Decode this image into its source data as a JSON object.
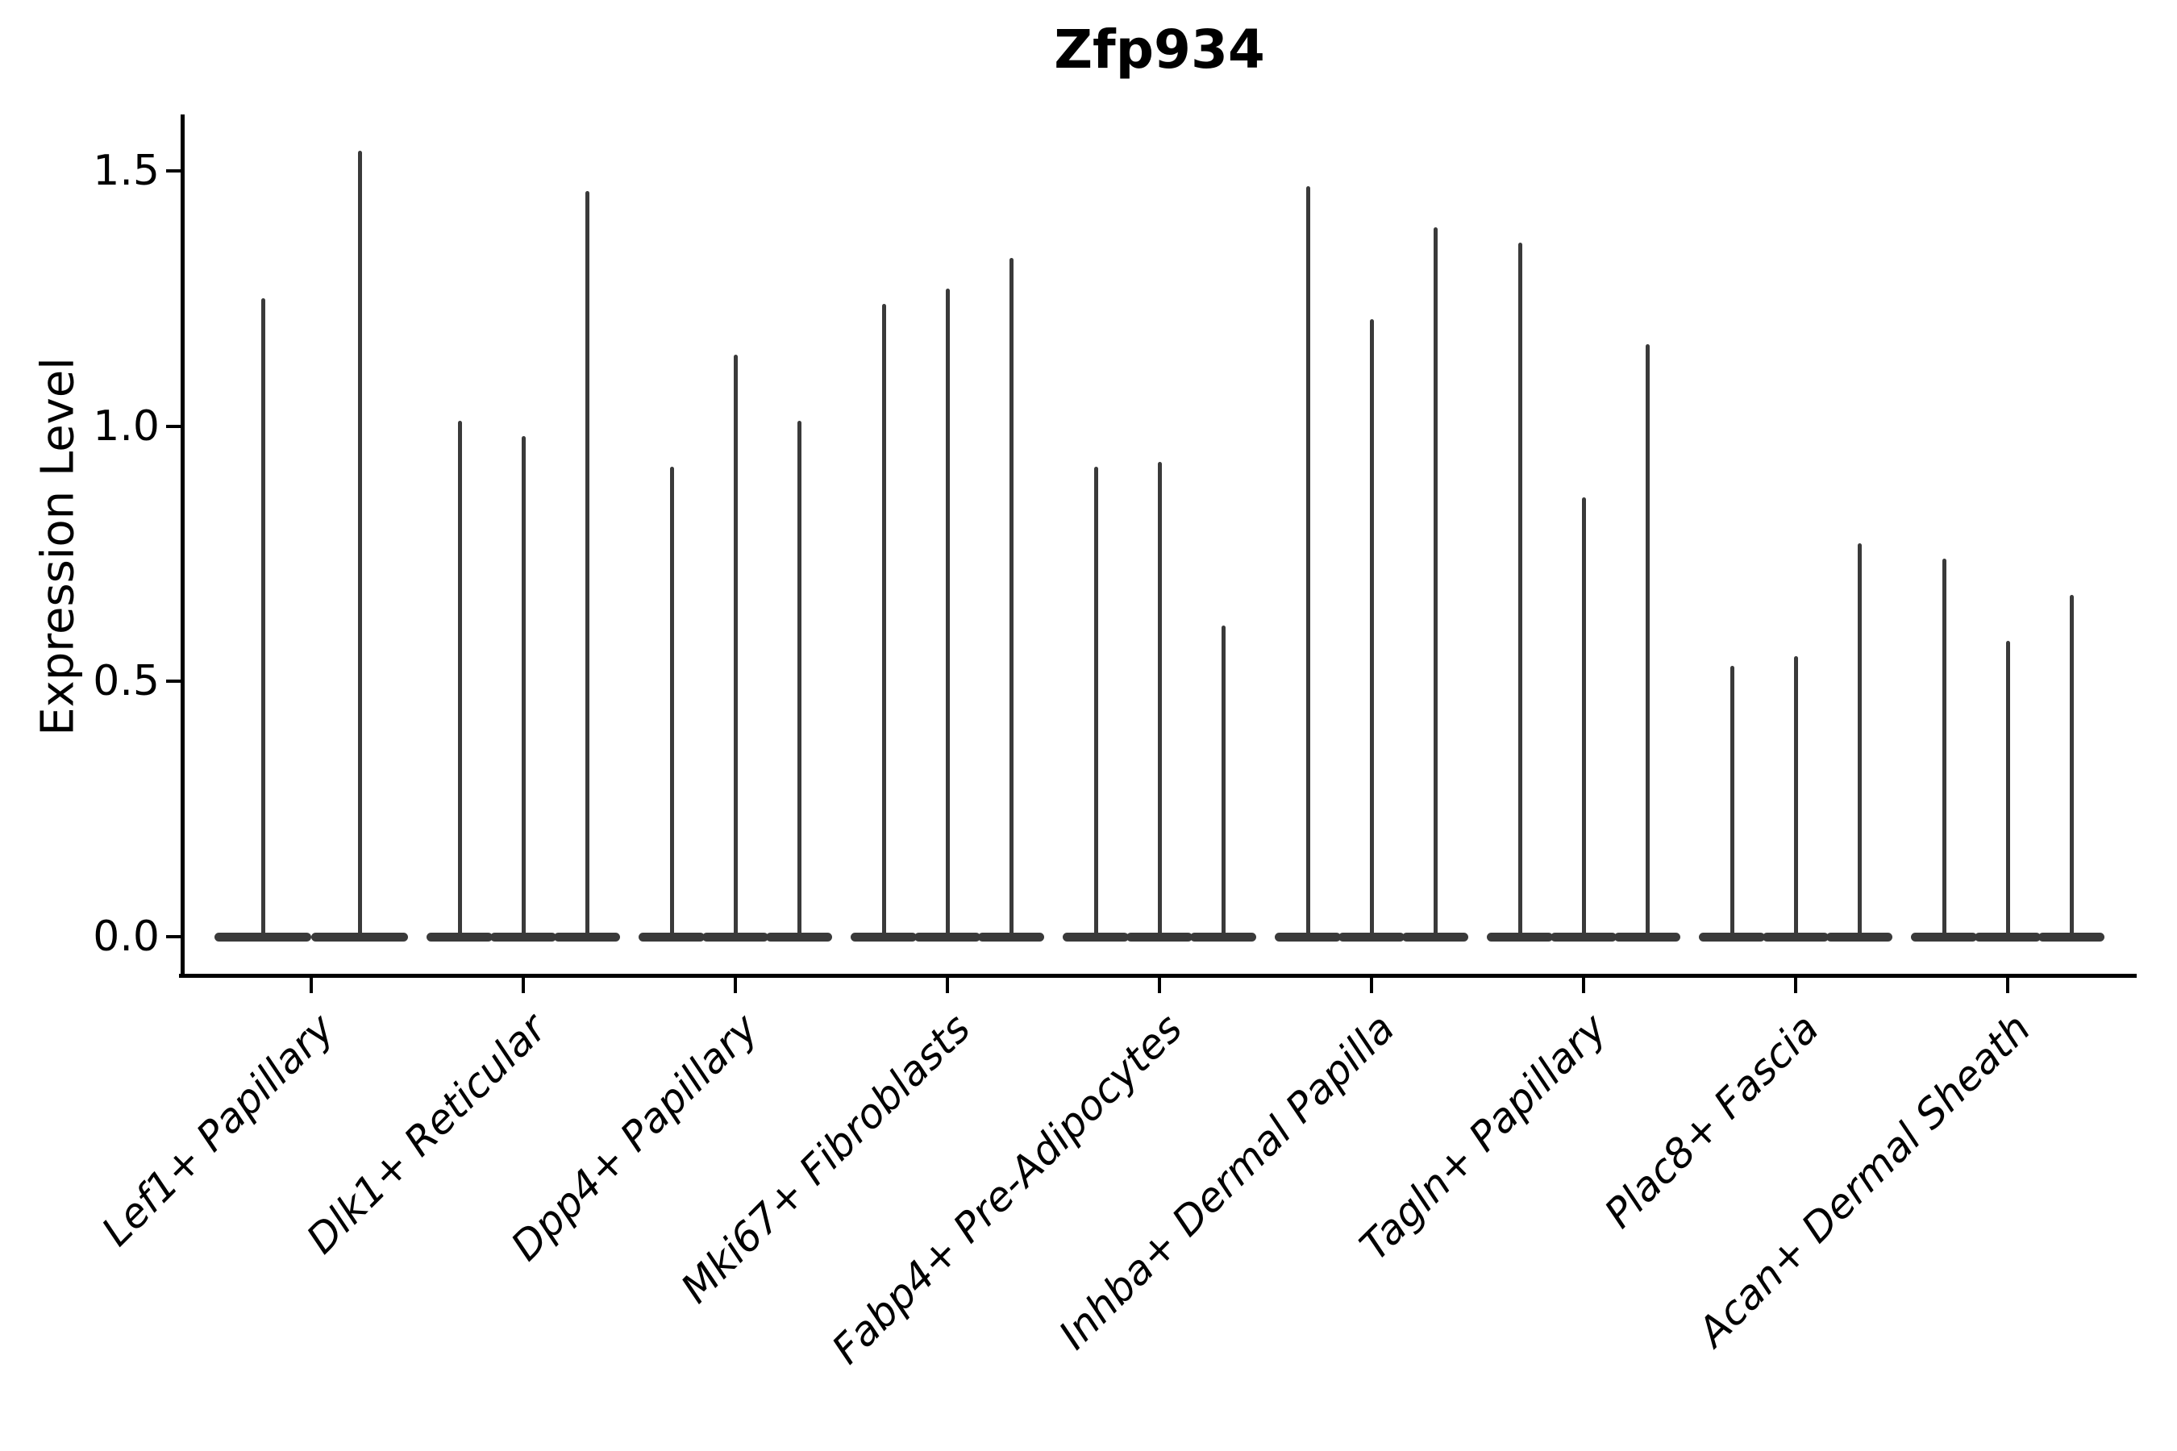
{
  "title": "Zfp934",
  "ylabel": "Expression Level",
  "chart_data": {
    "type": "violin",
    "title": "Zfp934",
    "xlabel": "",
    "ylabel": "Expression Level",
    "ylim": [
      -0.08,
      1.6
    ],
    "yticks": [
      0.0,
      0.5,
      1.0,
      1.5
    ],
    "ytick_labels": [
      "0.0",
      "0.5",
      "1.0",
      "1.5"
    ],
    "grid": false,
    "legend_position": "none",
    "violin_color": "#3a3a3a",
    "axis_color": "#000000",
    "style_note": "sparse single-cell expression violins: each violin is collapsed flat at 0 with a thin spike rising to the maximum expression value",
    "categories": [
      "Lef1+ Papillary",
      "Dlk1+ Reticular",
      "Dpp4+ Papillary",
      "Mki67+ Fibroblasts",
      "Fabp4+ Pre-Adipocytes",
      "Inhba+ Dermal Papilla",
      "Tagln+ Papillary",
      "Plac8+ Fascia",
      "Acan+ Dermal Sheath"
    ],
    "groups": [
      {
        "category": "Lef1+ Papillary",
        "spike_maxima": [
          1.25,
          1.54
        ]
      },
      {
        "category": "Dlk1+ Reticular",
        "spike_maxima": [
          1.01,
          0.98,
          1.46
        ]
      },
      {
        "category": "Dpp4+ Papillary",
        "spike_maxima": [
          0.92,
          1.14,
          1.01
        ]
      },
      {
        "category": "Mki67+ Fibroblasts",
        "spike_maxima": [
          1.24,
          1.27,
          1.33
        ]
      },
      {
        "category": "Fabp4+ Pre-Adipocytes",
        "spike_maxima": [
          0.92,
          0.93,
          0.61
        ]
      },
      {
        "category": "Inhba+ Dermal Papilla",
        "spike_maxima": [
          1.47,
          1.21,
          1.39
        ]
      },
      {
        "category": "Tagln+ Papillary",
        "spike_maxima": [
          1.36,
          0.86,
          1.16
        ]
      },
      {
        "category": "Plac8+ Fascia",
        "spike_maxima": [
          0.53,
          0.55,
          0.77
        ]
      },
      {
        "category": "Acan+ Dermal Sheath",
        "spike_maxima": [
          0.74,
          0.58,
          0.67
        ]
      }
    ]
  }
}
